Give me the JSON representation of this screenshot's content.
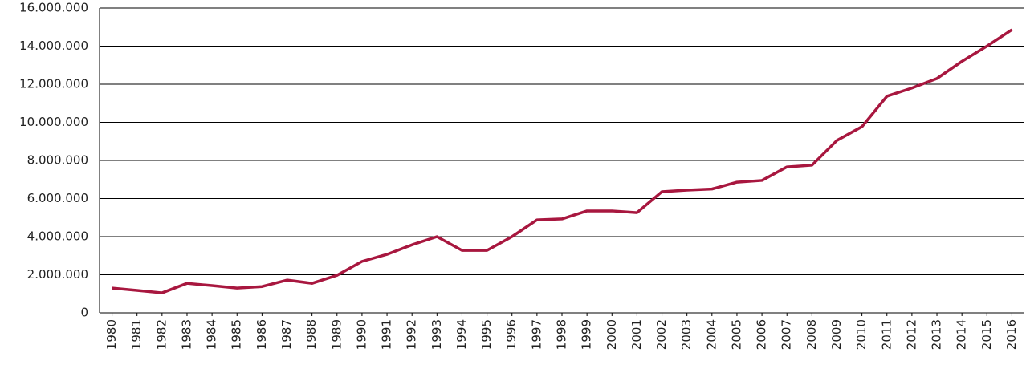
{
  "chart_data": {
    "type": "line",
    "categories": [
      "1980",
      "1981",
      "1982",
      "1983",
      "1984",
      "1985",
      "1986",
      "1987",
      "1988",
      "1989",
      "1990",
      "1991",
      "1992",
      "1993",
      "1994",
      "1995",
      "1996",
      "1997",
      "1998",
      "1999",
      "2000",
      "2001",
      "2002",
      "2003",
      "2004",
      "2005",
      "2006",
      "2007",
      "2008",
      "2009",
      "2010",
      "2011",
      "2012",
      "2013",
      "2014",
      "2015",
      "2016"
    ],
    "values": [
      1300000,
      1180000,
      1050000,
      1550000,
      1430000,
      1300000,
      1380000,
      1720000,
      1550000,
      1970000,
      2700000,
      3070000,
      3570000,
      4000000,
      3280000,
      3280000,
      4000000,
      4880000,
      4930000,
      5350000,
      5350000,
      5260000,
      6360000,
      6440000,
      6500000,
      6860000,
      6950000,
      7660000,
      7750000,
      9050000,
      9770000,
      11370000,
      11800000,
      12300000,
      13200000,
      14000000,
      14860000
    ],
    "color": "#a8173f",
    "ylim": [
      0,
      16000000
    ],
    "yticks": [
      0,
      {
        "value": 2000000,
        "label": "2.000.000"
      },
      {
        "value": 4000000,
        "label": "4.000.000"
      },
      {
        "value": 6000000,
        "label": "6.000.000"
      },
      {
        "value": 8000000,
        "label": "8.000.000"
      },
      {
        "value": 10000000,
        "label": "10.000.000"
      },
      {
        "value": 12000000,
        "label": "12.000.000"
      },
      {
        "value": 14000000,
        "label": "14.000.000"
      },
      {
        "value": 16000000,
        "label": "16.000.000"
      }
    ],
    "grid": true
  }
}
